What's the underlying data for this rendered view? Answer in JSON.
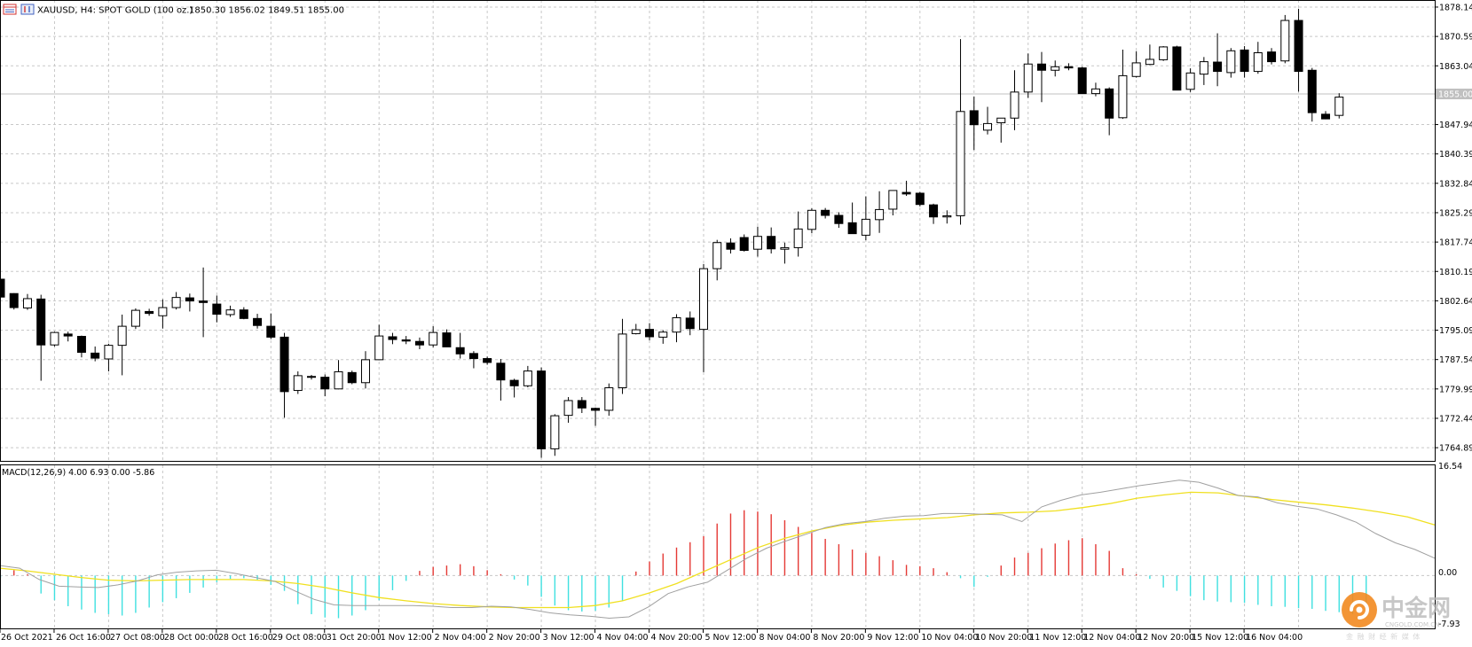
{
  "symbol_info": "XAUUSD, H4:  SPOT GOLD (100 oz.)",
  "ohlc": "1850.30  1856.02  1849.51  1855.00",
  "price_axis": {
    "labels": [
      "1878.14",
      "1870.59",
      "1863.04",
      "1855.00",
      "1847.94",
      "1840.39",
      "1832.84",
      "1825.29",
      "1817.74",
      "1810.19",
      "1802.64",
      "1795.09",
      "1787.54",
      "1779.99",
      "1772.44",
      "1764.89"
    ],
    "current_label": "1855.00"
  },
  "macd": {
    "title": "MACD(12,26,9) 4.00 6.93 0.00 -5.86",
    "axis_labels": [
      "16.54",
      "0.00",
      "-7.93"
    ]
  },
  "time_labels": [
    "26 Oct 2021",
    "26 Oct 16:00",
    "27 Oct 08:00",
    "28 Oct 00:00",
    "28 Oct 16:00",
    "29 Oct 08:00",
    "31 Oct 20:00",
    "1 Nov 12:00",
    "2 Nov 04:00",
    "2 Nov 20:00",
    "3 Nov 12:00",
    "4 Nov 04:00",
    "4 Nov 20:00",
    "5 Nov 12:00",
    "8 Nov 04:00",
    "8 Nov 20:00",
    "9 Nov 12:00",
    "10 Nov 04:00",
    "10 Nov 20:00",
    "11 Nov 12:00",
    "12 Nov 04:00",
    "12 Nov 20:00",
    "15 Nov 12:00",
    "16 Nov 04:00"
  ],
  "watermark": {
    "name": "中金网",
    "domain": "CNGOLD.COM.CN",
    "tagline": "金 融 财 经 新 媒 体"
  },
  "colors": {
    "grid": "#c8c8c8",
    "bull_fill": "#ffffff",
    "bear_fill": "#000000",
    "macd_pos": "#e53935",
    "macd_neg": "#3fe0e0",
    "signal": "#f0e020",
    "macd_line": "#a0a0a0",
    "current_price": "#c0c0c0"
  },
  "chart_data": [
    {
      "type": "candlestick",
      "title": "XAUUSD, H4",
      "ylim": [
        1761.5,
        1879.5
      ],
      "candles": [
        [
          1808.2,
          1808.5,
          1803.4,
          1803.6
        ],
        [
          1804.5,
          1804.6,
          1800.4,
          1800.9
        ],
        [
          1800.8,
          1804.4,
          1800.3,
          1803.2
        ],
        [
          1803.1,
          1804.2,
          1782.1,
          1791.3
        ],
        [
          1791.3,
          1794.7,
          1790.9,
          1794.5
        ],
        [
          1794.1,
          1794.7,
          1792.2,
          1793.6
        ],
        [
          1793.5,
          1793.7,
          1788.1,
          1789.4
        ],
        [
          1789.2,
          1790.9,
          1787.1,
          1787.9
        ],
        [
          1787.7,
          1791.6,
          1784.5,
          1791.2
        ],
        [
          1791.2,
          1799.1,
          1783.5,
          1796.1
        ],
        [
          1796.1,
          1800.7,
          1795.4,
          1800.2
        ],
        [
          1799.9,
          1800.6,
          1798.8,
          1799.4
        ],
        [
          1798.8,
          1803.0,
          1795.5,
          1800.9
        ],
        [
          1800.9,
          1804.9,
          1800.4,
          1803.5
        ],
        [
          1803.4,
          1804.5,
          1799.9,
          1802.6
        ],
        [
          1802.6,
          1811.2,
          1793.3,
          1802.2
        ],
        [
          1801.8,
          1804.0,
          1797.1,
          1799.2
        ],
        [
          1799.1,
          1801.4,
          1798.5,
          1800.3
        ],
        [
          1800.3,
          1801.0,
          1797.9,
          1798.1
        ],
        [
          1798.1,
          1799.3,
          1795.5,
          1796.3
        ],
        [
          1796.1,
          1799.4,
          1792.8,
          1793.3
        ],
        [
          1793.3,
          1794.4,
          1772.6,
          1779.3
        ],
        [
          1779.6,
          1784.5,
          1778.7,
          1783.4
        ],
        [
          1783.1,
          1783.6,
          1782.4,
          1783.2
        ],
        [
          1783.0,
          1783.7,
          1778.1,
          1780.0
        ],
        [
          1780.0,
          1787.4,
          1779.9,
          1784.4
        ],
        [
          1784.2,
          1784.7,
          1781.2,
          1781.6
        ],
        [
          1781.6,
          1789.7,
          1780.1,
          1787.5
        ],
        [
          1787.5,
          1796.5,
          1787.4,
          1793.6
        ],
        [
          1793.4,
          1794.4,
          1791.5,
          1792.7
        ],
        [
          1792.6,
          1793.6,
          1791.5,
          1792.3
        ],
        [
          1792.2,
          1793.2,
          1790.2,
          1791.3
        ],
        [
          1791.3,
          1796.1,
          1790.7,
          1794.5
        ],
        [
          1794.4,
          1795.3,
          1791.2,
          1790.8
        ],
        [
          1790.6,
          1794.4,
          1787.8,
          1789.0
        ],
        [
          1789.1,
          1789.7,
          1785.3,
          1787.8
        ],
        [
          1787.8,
          1788.3,
          1786.2,
          1786.8
        ],
        [
          1786.6,
          1787.7,
          1777.0,
          1782.3
        ],
        [
          1782.2,
          1782.6,
          1777.8,
          1780.8
        ],
        [
          1780.8,
          1785.9,
          1780.4,
          1784.6
        ],
        [
          1784.6,
          1785.5,
          1762.3,
          1764.6
        ],
        [
          1764.6,
          1773.5,
          1762.8,
          1773.1
        ],
        [
          1773.2,
          1777.9,
          1771.3,
          1777.0
        ],
        [
          1777.0,
          1777.9,
          1773.8,
          1775.1
        ],
        [
          1775.0,
          1775.2,
          1770.5,
          1774.5
        ],
        [
          1774.5,
          1781.4,
          1773.1,
          1780.3
        ],
        [
          1780.3,
          1798.0,
          1778.7,
          1794.1
        ],
        [
          1794.2,
          1796.7,
          1794.0,
          1795.2
        ],
        [
          1795.3,
          1796.9,
          1792.5,
          1793.4
        ],
        [
          1793.3,
          1795.1,
          1791.6,
          1794.6
        ],
        [
          1794.6,
          1799.2,
          1792.0,
          1798.3
        ],
        [
          1798.2,
          1799.9,
          1793.8,
          1795.5
        ],
        [
          1795.3,
          1812.1,
          1784.3,
          1810.9
        ],
        [
          1810.9,
          1818.3,
          1807.9,
          1817.6
        ],
        [
          1817.5,
          1818.7,
          1814.8,
          1815.9
        ],
        [
          1818.9,
          1819.7,
          1815.3,
          1815.6
        ],
        [
          1815.9,
          1821.7,
          1814.0,
          1819.2
        ],
        [
          1819.2,
          1821.5,
          1814.8,
          1816.0
        ],
        [
          1815.9,
          1817.6,
          1812.2,
          1816.3
        ],
        [
          1816.3,
          1825.6,
          1814.0,
          1821.1
        ],
        [
          1821.0,
          1826.4,
          1820.0,
          1825.9
        ],
        [
          1825.9,
          1826.5,
          1823.8,
          1824.6
        ],
        [
          1824.6,
          1825.4,
          1821.4,
          1822.5
        ],
        [
          1822.7,
          1827.9,
          1819.9,
          1819.9
        ],
        [
          1819.5,
          1829.5,
          1818.2,
          1823.6
        ],
        [
          1823.5,
          1830.8,
          1820.1,
          1826.1
        ],
        [
          1826.2,
          1830.8,
          1824.6,
          1831.0
        ],
        [
          1830.5,
          1833.5,
          1829.6,
          1830.1
        ],
        [
          1830.3,
          1830.6,
          1826.9,
          1827.4
        ],
        [
          1827.3,
          1827.6,
          1822.4,
          1824.2
        ],
        [
          1824.2,
          1825.9,
          1822.5,
          1824.5
        ],
        [
          1824.5,
          1869.9,
          1822.2,
          1851.3
        ],
        [
          1851.5,
          1855.1,
          1841.4,
          1847.9
        ],
        [
          1846.5,
          1852.5,
          1845.4,
          1848.2
        ],
        [
          1848.4,
          1849.5,
          1843.3,
          1849.6
        ],
        [
          1849.6,
          1861.9,
          1846.5,
          1856.3
        ],
        [
          1856.3,
          1866.2,
          1854.8,
          1863.5
        ],
        [
          1863.5,
          1866.6,
          1853.7,
          1861.9
        ],
        [
          1861.9,
          1864.4,
          1860.3,
          1862.8
        ],
        [
          1862.8,
          1863.7,
          1861.9,
          1862.5
        ],
        [
          1862.5,
          1862.8,
          1855.8,
          1855.9
        ],
        [
          1855.9,
          1858.7,
          1855.2,
          1857.1
        ],
        [
          1857.1,
          1857.5,
          1845.2,
          1849.6
        ],
        [
          1849.7,
          1867.2,
          1849.4,
          1860.5
        ],
        [
          1860.3,
          1866.8,
          1860.0,
          1863.8
        ],
        [
          1863.4,
          1868.5,
          1863.2,
          1864.7
        ],
        [
          1864.6,
          1868.1,
          1864.3,
          1867.9
        ],
        [
          1867.9,
          1868.2,
          1857.2,
          1856.8
        ],
        [
          1857.0,
          1862.4,
          1856.3,
          1861.2
        ],
        [
          1860.9,
          1865.3,
          1858.1,
          1864.1
        ],
        [
          1864.0,
          1871.4,
          1857.8,
          1861.6
        ],
        [
          1861.3,
          1867.6,
          1860.0,
          1866.9
        ],
        [
          1867.1,
          1868.1,
          1860.0,
          1861.6
        ],
        [
          1861.6,
          1869.2,
          1861.0,
          1866.4
        ],
        [
          1866.6,
          1867.6,
          1863.4,
          1864.1
        ],
        [
          1864.3,
          1876.1,
          1863.7,
          1874.7
        ],
        [
          1874.7,
          1877.7,
          1856.4,
          1861.6
        ],
        [
          1861.9,
          1862.5,
          1848.7,
          1851.0
        ],
        [
          1850.6,
          1851.4,
          1849.3,
          1849.4
        ],
        [
          1850.3,
          1856.0,
          1849.5,
          1855.0
        ]
      ]
    },
    {
      "type": "macd",
      "title": "MACD(12,26,9)",
      "params": [
        12,
        26,
        9
      ],
      "values": {
        "macd": 4.0,
        "signal": 6.93
      },
      "ylim": [
        -7.93,
        16.54
      ],
      "histogram": [
        -0.3,
        0.8,
        0.2,
        -2.7,
        -3.7,
        -4.6,
        -5.1,
        -5.6,
        -5.8,
        -6.0,
        -5.6,
        -4.8,
        -4.0,
        -3.4,
        -2.6,
        -1.8,
        -1.0,
        -0.5,
        -0.4,
        -0.7,
        -1.4,
        -2.3,
        -4.3,
        -5.8,
        -6.3,
        -6.4,
        -6.0,
        -5.2,
        -3.7,
        -2.2,
        -0.8,
        0.7,
        1.3,
        1.5,
        1.7,
        1.4,
        0.8,
        0.2,
        -0.6,
        -1.5,
        -3.2,
        -4.5,
        -5.2,
        -5.4,
        -5.3,
        -4.8,
        -3.8,
        0.6,
        2.1,
        3.3,
        4.2,
        5.0,
        5.9,
        7.8,
        9.3,
        9.8,
        9.6,
        9.2,
        8.3,
        7.3,
        6.4,
        5.5,
        4.7,
        3.9,
        3.4,
        2.9,
        2.3,
        1.6,
        1.4,
        1.1,
        0.5,
        -0.4,
        -1.7,
        -0.2,
        1.5,
        2.7,
        3.4,
        4.1,
        4.8,
        5.3,
        5.6,
        4.7,
        3.7,
        1.1,
        0.2,
        -0.5,
        -1.8,
        -2.3,
        -3.1,
        -3.7,
        -3.9,
        -4.0,
        -4.1,
        -4.4,
        -4.6,
        -4.7,
        -4.9,
        -5.0,
        -5.3,
        -5.5,
        -5.8,
        -5.9
      ],
      "macd_line": [
        1.5,
        1.1,
        -0.6,
        -1.6,
        -1.7,
        -1.8,
        -1.4,
        -0.8,
        0.1,
        0.5,
        0.7,
        0.8,
        0.3,
        -0.3,
        -0.9,
        -2.3,
        -3.6,
        -4.4,
        -4.5,
        -4.5,
        -4.5,
        -4.5,
        -4.6,
        -4.8,
        -4.8,
        -4.6,
        -4.7,
        -5.1,
        -5.6,
        -5.9,
        -6.1,
        -6.4,
        -6.2,
        -4.7,
        -2.7,
        -1.7,
        -1.0,
        0.8,
        2.6,
        4.1,
        5.2,
        6.2,
        7.2,
        7.8,
        8.1,
        8.6,
        8.9,
        9.0,
        9.3,
        9.3,
        9.2,
        9.1,
        8.1,
        10.3,
        11.3,
        12.1,
        12.5,
        13.0,
        13.5,
        13.9,
        14.3,
        14.0,
        13.1,
        12.0,
        11.8,
        10.9,
        10.4,
        10.0,
        9.1,
        8.0,
        6.3,
        4.9,
        3.9,
        2.6
      ],
      "signal_line": [
        1.1,
        0.7,
        0.2,
        -0.3,
        -0.7,
        -0.8,
        -0.7,
        -0.6,
        -0.6,
        -0.6,
        -0.8,
        -1.2,
        -1.8,
        -2.6,
        -3.3,
        -3.8,
        -4.2,
        -4.5,
        -4.7,
        -4.8,
        -4.8,
        -4.8,
        -4.5,
        -3.8,
        -2.6,
        -1.2,
        0.6,
        2.4,
        4.2,
        5.6,
        6.7,
        7.5,
        8.0,
        8.3,
        8.5,
        8.7,
        9.1,
        9.4,
        9.5,
        9.7,
        10.2,
        10.8,
        11.6,
        12.1,
        12.5,
        12.4,
        11.9,
        11.4,
        11.0,
        10.6,
        10.1,
        9.5,
        8.8,
        7.6
      ]
    }
  ]
}
